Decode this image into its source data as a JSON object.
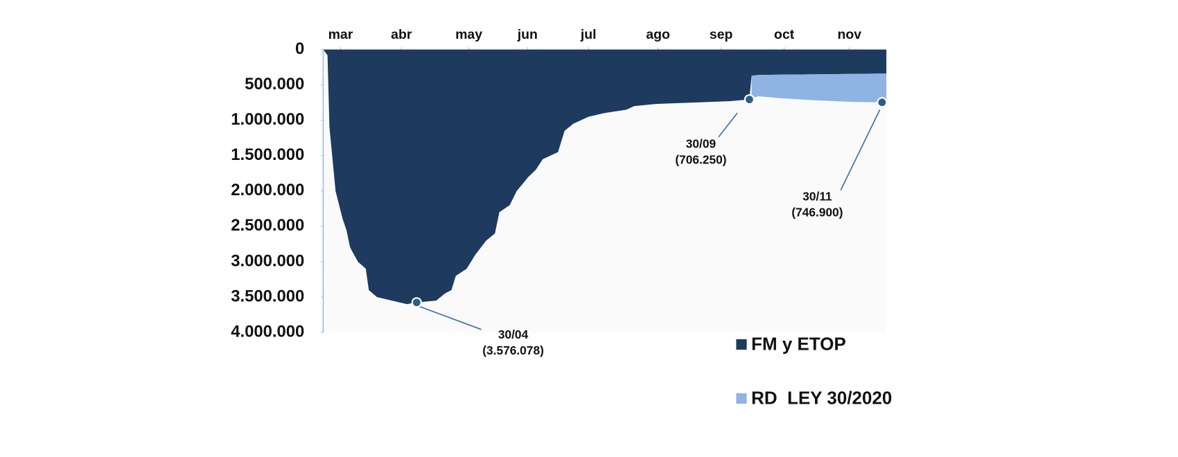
{
  "chart_data": {
    "type": "area",
    "stacked": true,
    "y_reversed": true,
    "x": [
      17,
      19,
      19.9,
      22.7,
      26,
      27.7,
      29.4,
      33,
      36.6,
      38,
      41.7,
      48.6,
      55.5,
      60,
      69,
      73,
      76,
      78,
      83,
      87,
      92,
      96,
      98,
      102.8,
      106,
      111.4,
      114.8,
      118,
      125,
      128,
      132,
      139,
      146,
      156.5,
      160,
      170,
      187,
      204,
      213,
      214,
      217,
      228,
      245,
      260,
      274,
      276
    ],
    "xlim": [
      17,
      276
    ],
    "xticks": [
      {
        "value": 25,
        "label": "mar"
      },
      {
        "value": 53,
        "label": "abr"
      },
      {
        "value": 84,
        "label": "may"
      },
      {
        "value": 111,
        "label": "jun"
      },
      {
        "value": 139,
        "label": "jul"
      },
      {
        "value": 171,
        "label": "ago"
      },
      {
        "value": 200,
        "label": "sep"
      },
      {
        "value": 229,
        "label": "oct"
      },
      {
        "value": 259,
        "label": "nov"
      }
    ],
    "ylim": [
      0,
      4000000
    ],
    "yticks": [
      0,
      {
        "value": 500000,
        "label": "500.000"
      },
      {
        "value": 1000000,
        "label": "1.000.000"
      },
      {
        "value": 1500000,
        "label": "1.500.000"
      },
      {
        "value": 2000000,
        "label": "2.000.000"
      },
      {
        "value": 2500000,
        "label": "2.500.000"
      },
      {
        "value": 3000000,
        "label": "3.000.000"
      },
      {
        "value": 3500000,
        "label": "3.500.000"
      },
      {
        "value": 4000000,
        "label": "4.000.000"
      }
    ],
    "series": [
      {
        "name": "FM y ETOP",
        "color": "#1e3a5f",
        "values": [
          0,
          80000,
          1100000,
          2000000,
          2400000,
          2550000,
          2800000,
          3000000,
          3100000,
          3400000,
          3500000,
          3550000,
          3600000,
          3576078,
          3550000,
          3450000,
          3400000,
          3200000,
          3100000,
          2900000,
          2700000,
          2600000,
          2300000,
          2200000,
          2000000,
          1800000,
          1700000,
          1550000,
          1450000,
          1150000,
          1050000,
          950000,
          900000,
          850000,
          800000,
          770000,
          750000,
          730000,
          706250,
          370000,
          360000,
          355000,
          350000,
          345000,
          340000,
          340000
        ]
      },
      {
        "name": "RD  LEY 30/2020",
        "color": "#8fb4e3",
        "values": [
          null,
          null,
          null,
          null,
          null,
          null,
          null,
          null,
          null,
          null,
          null,
          null,
          null,
          null,
          null,
          null,
          null,
          null,
          null,
          null,
          null,
          null,
          null,
          null,
          null,
          null,
          null,
          null,
          null,
          null,
          null,
          null,
          null,
          null,
          null,
          null,
          null,
          null,
          null,
          320000,
          300000,
          335000,
          370000,
          395000,
          406900,
          405000
        ]
      }
    ],
    "annotations": [
      {
        "x": 60,
        "y": 3576078,
        "text": [
          "30/04",
          "(3.576.078)"
        ]
      },
      {
        "x": 213,
        "y": 706250,
        "text": [
          "30/09",
          "(706.250)"
        ]
      },
      {
        "x": 274,
        "y": 746900,
        "text": [
          "30/11",
          "(746.900)"
        ]
      }
    ]
  }
}
